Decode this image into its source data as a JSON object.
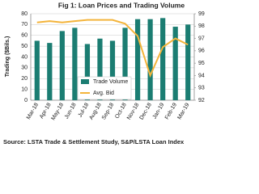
{
  "chart_data": {
    "type": "bar-line",
    "title": "Fig 1: Loan Prices and Trading Volume",
    "ylabel": "Trading ($Bils.)",
    "source": "Source: LSTA Trade & Settlement Study, S&P/LSTA Loan Index",
    "categories": [
      "Mar-18",
      "Apr-18",
      "May-18",
      "Jun-18",
      "Jul-18",
      "Aug-18",
      "Sep-18",
      "Oct-18",
      "Nov-18",
      "Dec-18",
      "Jan-19",
      "Feb-19",
      "Mar-19"
    ],
    "series": [
      {
        "name": "Trade Volume",
        "type": "bar",
        "color": "#1b7d72",
        "values": [
          55,
          53,
          64,
          67,
          52,
          57,
          55,
          67,
          75,
          75,
          76,
          68,
          70
        ]
      },
      {
        "name": "Avg. Bid",
        "type": "line",
        "axis": "y2",
        "color": "#f4b43a",
        "values": [
          98.3,
          98.4,
          98.3,
          98.4,
          98.5,
          98.5,
          98.5,
          98.2,
          97.2,
          94.0,
          96.3,
          97.0,
          96.5
        ]
      }
    ],
    "ylim": [
      0,
      80
    ],
    "yticks": [
      0,
      10,
      20,
      30,
      40,
      50,
      60,
      70,
      80
    ],
    "y2lim": [
      92,
      99
    ],
    "y2ticks": [
      92,
      93,
      94,
      95,
      96,
      97,
      98,
      99
    ],
    "grid": true
  }
}
